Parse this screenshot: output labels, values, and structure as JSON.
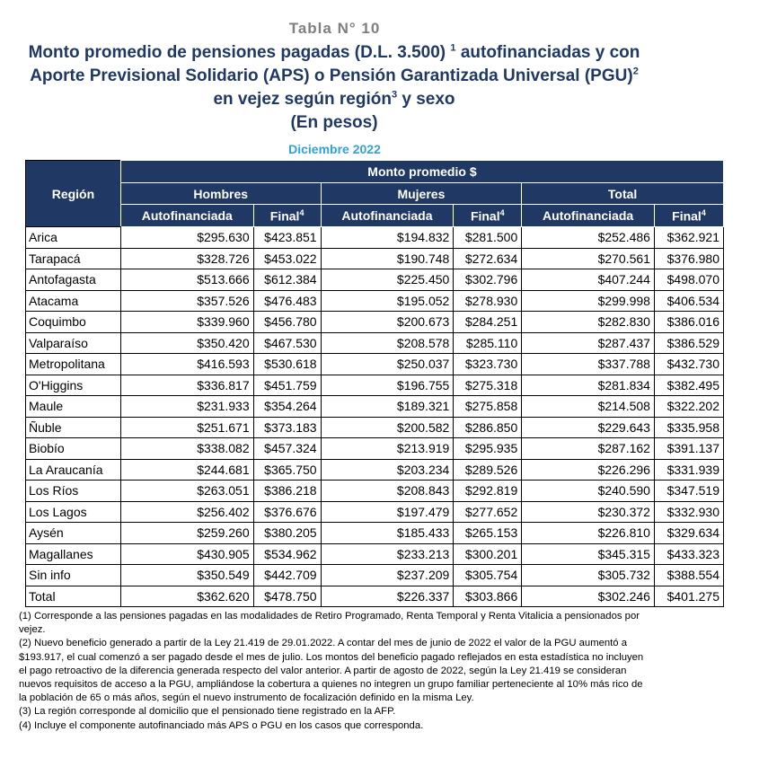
{
  "table_label": "Tabla N° 10",
  "title": {
    "p1": "Monto promedio de pensiones pagadas (D.L. 3.500)",
    "s1": "1",
    "p2": " autofinanciadas y con Aporte Previsional Solidario (APS) o Pensión Garantizada Universal (PGU)",
    "s2": "2",
    "p3": " en vejez según región",
    "s3": "3",
    "p4": " y sexo",
    "units": "(En pesos)"
  },
  "date": "Diciembre 2022",
  "header": {
    "region": "Región",
    "monto": "Monto promedio $",
    "hombres": "Hombres",
    "mujeres": "Mujeres",
    "total": "Total",
    "auto": "Autofinanciada",
    "final": "Final",
    "final_sup": "4"
  },
  "rows": [
    {
      "region": "Arica",
      "h_auto": "$295.630",
      "h_final": "$423.851",
      "m_auto": "$194.832",
      "m_final": "$281.500",
      "t_auto": "$252.486",
      "t_final": "$362.921"
    },
    {
      "region": "Tarapacá",
      "h_auto": "$328.726",
      "h_final": "$453.022",
      "m_auto": "$190.748",
      "m_final": "$272.634",
      "t_auto": "$270.561",
      "t_final": "$376.980"
    },
    {
      "region": "Antofagasta",
      "h_auto": "$513.666",
      "h_final": "$612.384",
      "m_auto": "$225.450",
      "m_final": "$302.796",
      "t_auto": "$407.244",
      "t_final": "$498.070"
    },
    {
      "region": "Atacama",
      "h_auto": "$357.526",
      "h_final": "$476.483",
      "m_auto": "$195.052",
      "m_final": "$278.930",
      "t_auto": "$299.998",
      "t_final": "$406.534"
    },
    {
      "region": "Coquimbo",
      "h_auto": "$339.960",
      "h_final": "$456.780",
      "m_auto": "$200.673",
      "m_final": "$284.251",
      "t_auto": "$282.830",
      "t_final": "$386.016"
    },
    {
      "region": "Valparaíso",
      "h_auto": "$350.420",
      "h_final": "$467.530",
      "m_auto": "$208.578",
      "m_final": "$285.110",
      "t_auto": "$287.437",
      "t_final": "$386.529"
    },
    {
      "region": "Metropolitana",
      "h_auto": "$416.593",
      "h_final": "$530.618",
      "m_auto": "$250.037",
      "m_final": "$323.730",
      "t_auto": "$337.788",
      "t_final": "$432.730"
    },
    {
      "region": "O'Higgins",
      "h_auto": "$336.817",
      "h_final": "$451.759",
      "m_auto": "$196.755",
      "m_final": "$275.318",
      "t_auto": "$281.834",
      "t_final": "$382.495"
    },
    {
      "region": "Maule",
      "h_auto": "$231.933",
      "h_final": "$354.264",
      "m_auto": "$189.321",
      "m_final": "$275.858",
      "t_auto": "$214.508",
      "t_final": "$322.202"
    },
    {
      "region": "Ñuble",
      "h_auto": "$251.671",
      "h_final": "$373.183",
      "m_auto": "$200.582",
      "m_final": "$286.850",
      "t_auto": "$229.643",
      "t_final": "$335.958"
    },
    {
      "region": "Biobío",
      "h_auto": "$338.082",
      "h_final": "$457.324",
      "m_auto": "$213.919",
      "m_final": "$295.935",
      "t_auto": "$287.162",
      "t_final": "$391.137"
    },
    {
      "region": "La Araucanía",
      "h_auto": "$244.681",
      "h_final": "$365.750",
      "m_auto": "$203.234",
      "m_final": "$289.526",
      "t_auto": "$226.296",
      "t_final": "$331.939"
    },
    {
      "region": "Los Ríos",
      "h_auto": "$263.051",
      "h_final": "$386.218",
      "m_auto": "$208.843",
      "m_final": "$292.819",
      "t_auto": "$240.590",
      "t_final": "$347.519"
    },
    {
      "region": "Los Lagos",
      "h_auto": "$256.402",
      "h_final": "$376.676",
      "m_auto": "$197.479",
      "m_final": "$277.652",
      "t_auto": "$230.372",
      "t_final": "$332.930"
    },
    {
      "region": "Aysén",
      "h_auto": "$259.260",
      "h_final": "$380.205",
      "m_auto": "$185.433",
      "m_final": "$265.153",
      "t_auto": "$226.810",
      "t_final": "$329.634"
    },
    {
      "region": "Magallanes",
      "h_auto": "$430.905",
      "h_final": "$534.962",
      "m_auto": "$233.213",
      "m_final": "$300.201",
      "t_auto": "$345.315",
      "t_final": "$433.323"
    },
    {
      "region": "Sin info",
      "h_auto": "$350.549",
      "h_final": "$442.709",
      "m_auto": "$237.209",
      "m_final": "$305.754",
      "t_auto": "$305.732",
      "t_final": "$388.554"
    },
    {
      "region": "Total",
      "h_auto": "$362.620",
      "h_final": "$478.750",
      "m_auto": "$226.337",
      "m_final": "$303.866",
      "t_auto": "$302.246",
      "t_final": "$401.275"
    }
  ],
  "notes": [
    "(1) Corresponde a las pensiones pagadas en las modalidades de Retiro Programado, Renta Temporal y Renta Vitalicia a pensionados por vejez.",
    "(2) Nuevo beneficio generado a partir de la Ley 21.419 de 29.01.2022. A contar del mes de junio de 2022 el valor de la PGU aumentó a $193.917, el cual comenzó a ser pagado desde el mes de julio. Los montos del beneficio pagado reflejados en esta estadística no incluyen el pago retroactivo de la diferencia generada respecto del valor anterior. A partir de agosto de 2022, según la Ley 21.419 se consideran nuevos requisitos de acceso a la PGU, ampliándose la cobertura a quienes no integren un grupo familiar perteneciente al 10% más rico de la población de 65 o más años, según el nuevo instrumento de focalización definido en la misma Ley.",
    "(3) La región corresponde al domicilio que el pensionado tiene registrado en la AFP.",
    "(4) Incluye el componente autofinanciado más APS o PGU en los casos que corresponda."
  ]
}
